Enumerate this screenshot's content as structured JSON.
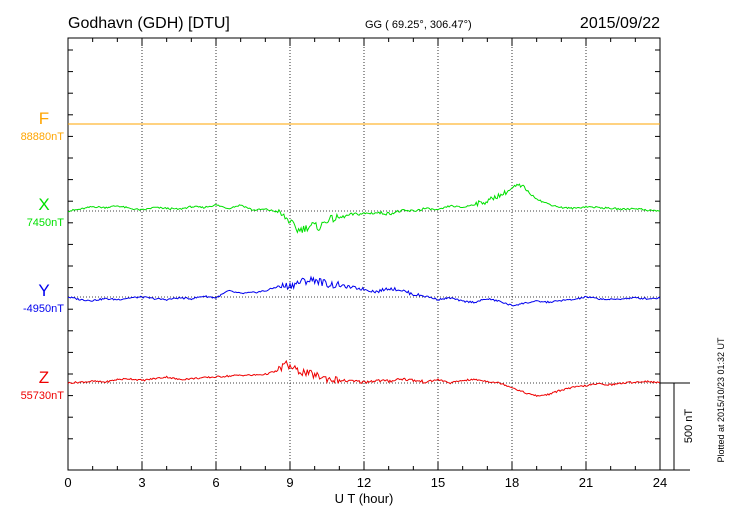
{
  "header": {
    "station": "Godhavn (GDH)  [DTU]",
    "coords": "GG ( 69.25°, 306.47°)",
    "date": "2015/09/22"
  },
  "side_note": "Plotted at 2015/10/23 01:32 UT",
  "scale_bar_label": "500 nT",
  "chart_data": {
    "type": "line",
    "xlabel": "U T (hour)",
    "xlim": [
      0,
      24
    ],
    "x_ticks": [
      "0",
      "3",
      "6",
      "9",
      "12",
      "15",
      "18",
      "21",
      "24"
    ],
    "scale_bar_nT": 500,
    "components": [
      {
        "name": "F",
        "baseline": "88880nT",
        "color": "#ffa500",
        "x": [
          0,
          24
        ],
        "values": [
          0,
          0
        ]
      },
      {
        "name": "X",
        "baseline": "7450nT",
        "color": "#00e000",
        "x": [
          0,
          0.5,
          1,
          1.5,
          2,
          2.5,
          3,
          3.5,
          4,
          4.5,
          5,
          5.5,
          6,
          6.5,
          7,
          7.5,
          8,
          8.5,
          9,
          9.3,
          9.6,
          9.9,
          10.2,
          10.5,
          11,
          11.5,
          12,
          12.5,
          13,
          13.5,
          14,
          14.5,
          15,
          15.5,
          16,
          16.5,
          17,
          17.3,
          17.6,
          17.9,
          18.2,
          18.5,
          18.8,
          19.2,
          19.6,
          20,
          20.5,
          21,
          21.5,
          22,
          22.5,
          23,
          23.5,
          24
        ],
        "values": [
          0,
          10,
          25,
          20,
          30,
          15,
          5,
          20,
          15,
          10,
          25,
          20,
          35,
          15,
          35,
          5,
          10,
          -5,
          -60,
          -110,
          -100,
          -80,
          -95,
          -50,
          -40,
          -20,
          -15,
          -10,
          -15,
          0,
          0,
          15,
          5,
          30,
          20,
          40,
          55,
          80,
          95,
          120,
          145,
          135,
          90,
          55,
          35,
          20,
          15,
          25,
          20,
          15,
          10,
          15,
          5,
          0
        ]
      },
      {
        "name": "Y",
        "baseline": "-4950nT",
        "color": "#0000ee",
        "x": [
          0,
          0.5,
          1,
          1.5,
          2,
          2.5,
          3,
          3.5,
          4,
          4.5,
          5,
          5.5,
          6,
          6.5,
          7,
          7.5,
          8,
          8.5,
          9,
          9.5,
          10,
          10.5,
          11,
          11.5,
          12,
          12.5,
          13,
          13.5,
          14,
          14.5,
          15,
          15.5,
          16,
          16.5,
          17,
          17.5,
          18,
          18.5,
          19,
          19.5,
          20,
          20.5,
          21,
          21.5,
          22,
          22.5,
          23,
          23.5,
          24
        ],
        "values": [
          0,
          -15,
          -20,
          -10,
          -15,
          -5,
          0,
          -10,
          -15,
          -5,
          -10,
          5,
          -5,
          35,
          20,
          25,
          35,
          60,
          65,
          90,
          100,
          75,
          65,
          55,
          45,
          30,
          50,
          40,
          15,
          5,
          -15,
          -5,
          -25,
          -30,
          -10,
          -25,
          -50,
          -35,
          -25,
          -30,
          -20,
          -15,
          0,
          -10,
          -15,
          -10,
          -5,
          -10,
          -5
        ]
      },
      {
        "name": "Z",
        "baseline": "55730nT",
        "color": "#ee0000",
        "x": [
          0,
          0.5,
          1,
          1.5,
          2,
          2.5,
          3,
          3.5,
          4,
          4.5,
          5,
          5.5,
          6,
          6.5,
          7,
          7.5,
          8,
          8.5,
          8.8,
          9,
          9.3,
          9.6,
          10,
          10.5,
          11,
          11.5,
          12,
          12.5,
          13,
          13.5,
          14,
          14.5,
          15,
          15.5,
          16,
          16.5,
          17,
          17.5,
          18,
          18.5,
          19,
          19.5,
          20,
          20.5,
          21,
          21.5,
          22,
          22.5,
          23,
          23.5,
          24
        ],
        "values": [
          0,
          5,
          10,
          5,
          20,
          25,
          15,
          25,
          35,
          20,
          25,
          30,
          35,
          40,
          45,
          45,
          50,
          70,
          110,
          95,
          70,
          60,
          45,
          25,
          15,
          10,
          5,
          15,
          10,
          25,
          15,
          5,
          20,
          0,
          15,
          20,
          10,
          0,
          -25,
          -55,
          -75,
          -65,
          -40,
          -25,
          -15,
          -5,
          -10,
          0,
          5,
          10,
          0
        ]
      }
    ]
  }
}
